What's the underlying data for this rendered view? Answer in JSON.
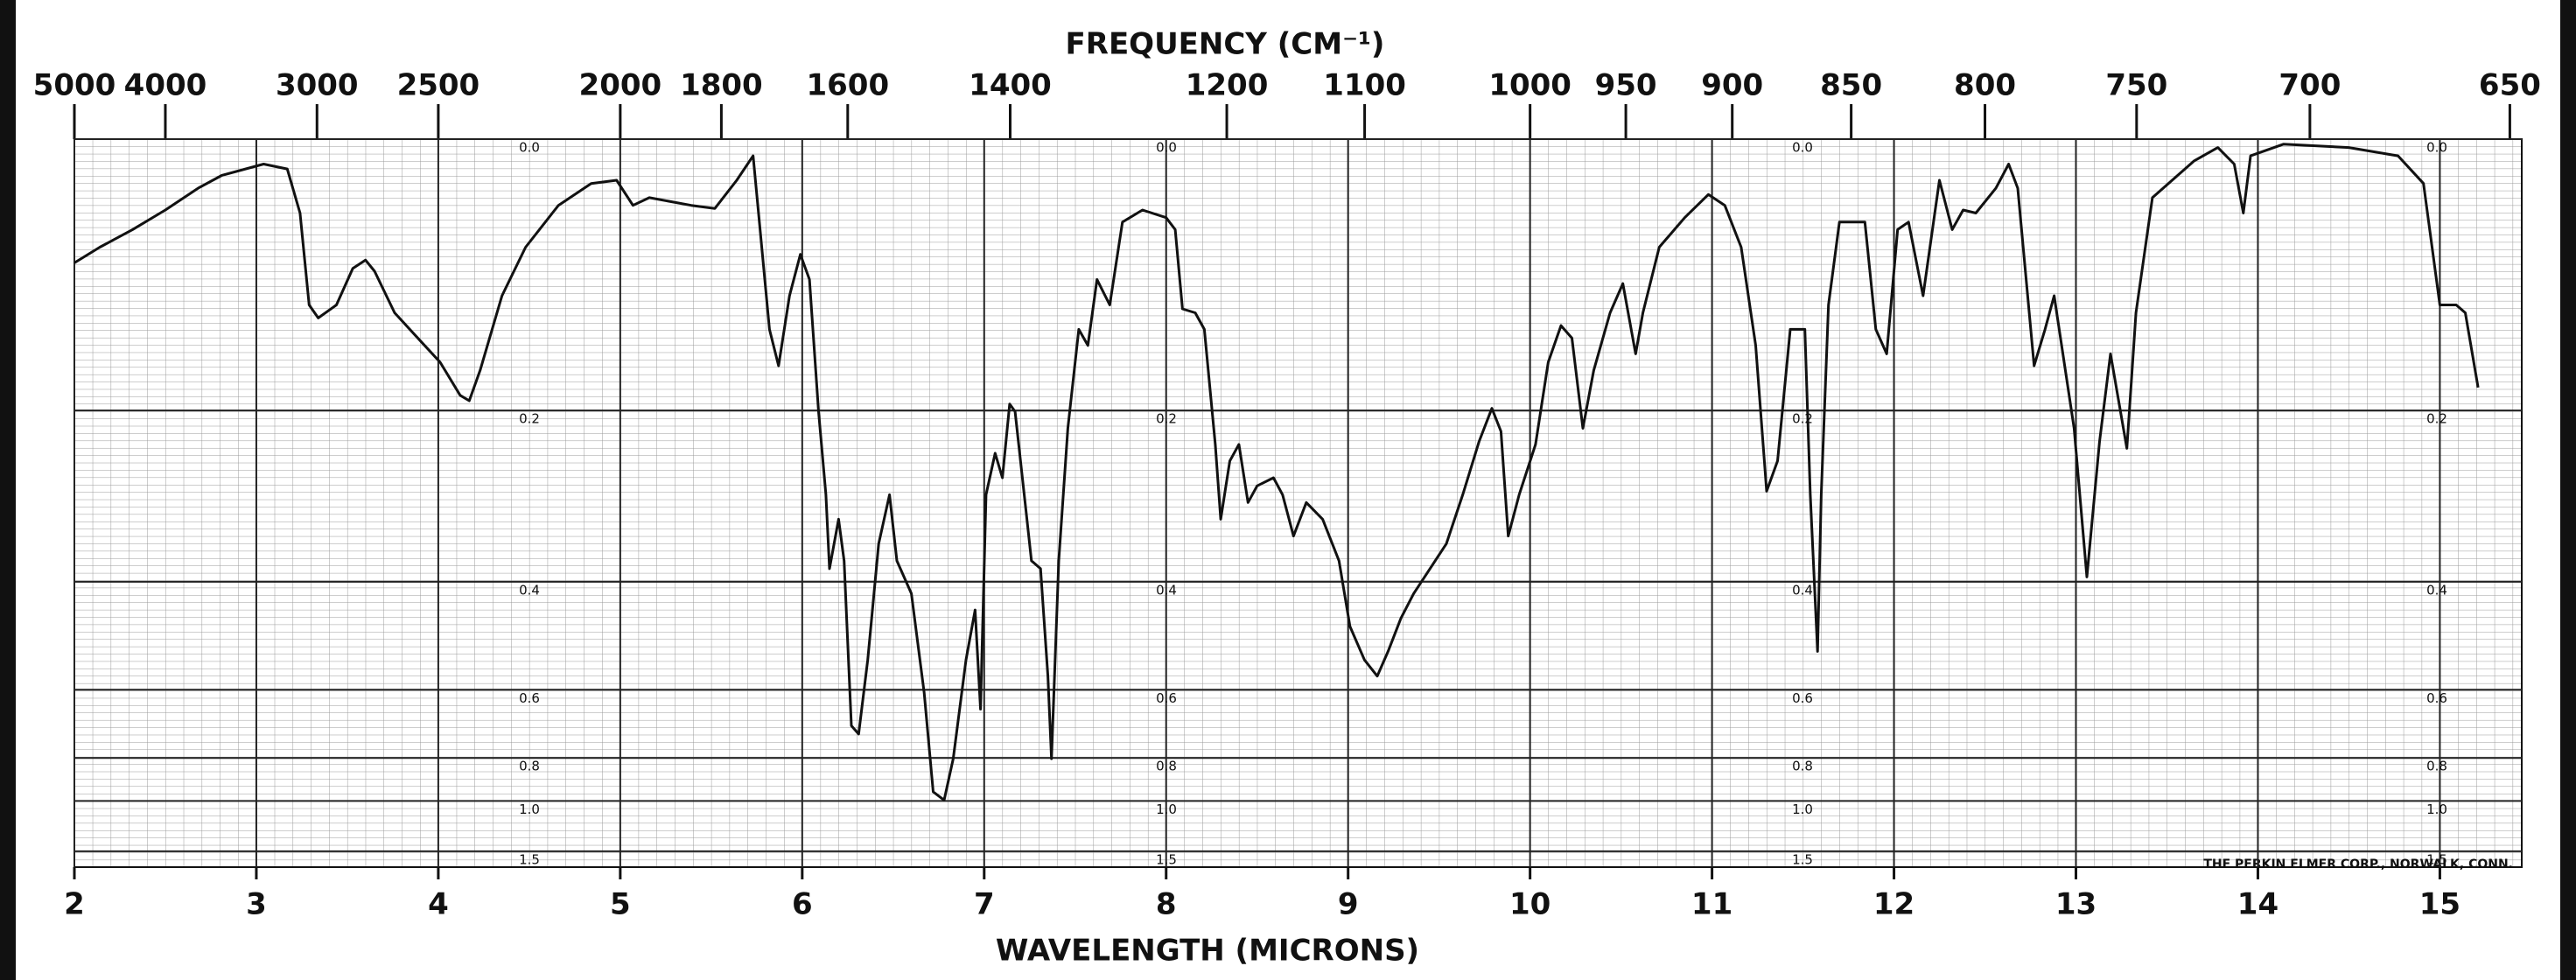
{
  "chart_data": {
    "type": "line",
    "x2_label": "FREQUENCY (CM⁻¹)",
    "x_label": "WAVELENGTH (MICRONS)",
    "note": "THE PERKIN ELMER CORP., NORWALK, CONN.",
    "color": "#111111",
    "yscale": "absorbance",
    "grid": true,
    "xlim": [
      2,
      15.45
    ],
    "ylim": [
      0,
      2
    ],
    "xticks": [
      2,
      3,
      4,
      5,
      6,
      7,
      8,
      9,
      10,
      11,
      12,
      13,
      14,
      15
    ],
    "x2ticks": [
      5000,
      4000,
      3000,
      2500,
      2000,
      1800,
      1600,
      1400,
      1200,
      1100,
      1000,
      950,
      900,
      850,
      800,
      750,
      700,
      650
    ],
    "yticks": [
      {
        "value": 0,
        "label": "0.0"
      },
      0.2,
      0.4,
      0.6,
      0.8,
      {
        "value": 1,
        "label": "1.0"
      },
      1.5
    ],
    "x": [
      2.0,
      2.14,
      2.32,
      2.5,
      2.68,
      2.81,
      3.04,
      3.17,
      3.24,
      3.29,
      3.34,
      3.44,
      3.53,
      3.6,
      3.65,
      3.76,
      3.9,
      4.01,
      4.12,
      4.17,
      4.23,
      4.35,
      4.48,
      4.66,
      4.84,
      4.98,
      5.07,
      5.16,
      5.39,
      5.52,
      5.64,
      5.73,
      5.76,
      5.82,
      5.87,
      5.93,
      5.99,
      6.04,
      6.09,
      6.13,
      6.15,
      6.2,
      6.23,
      6.27,
      6.31,
      6.36,
      6.42,
      6.48,
      6.52,
      6.6,
      6.67,
      6.72,
      6.78,
      6.83,
      6.9,
      6.95,
      6.98,
      7.01,
      7.06,
      7.1,
      7.14,
      7.17,
      7.23,
      7.26,
      7.31,
      7.35,
      7.37,
      7.41,
      7.46,
      7.52,
      7.57,
      7.62,
      7.69,
      7.76,
      7.87,
      8.0,
      8.05,
      8.09,
      8.16,
      8.21,
      8.27,
      8.3,
      8.35,
      8.4,
      8.45,
      8.5,
      8.59,
      8.64,
      8.7,
      8.77,
      8.86,
      8.95,
      9.01,
      9.09,
      9.16,
      9.22,
      9.29,
      9.36,
      9.45,
      9.54,
      9.63,
      9.72,
      9.79,
      9.84,
      9.88,
      9.94,
      10.03,
      10.1,
      10.17,
      10.23,
      10.29,
      10.35,
      10.44,
      10.51,
      10.58,
      10.62,
      10.71,
      10.85,
      10.98,
      11.07,
      11.16,
      11.24,
      11.3,
      11.36,
      11.43,
      11.51,
      11.54,
      11.58,
      11.6,
      11.64,
      11.7,
      11.84,
      11.9,
      11.96,
      12.02,
      12.08,
      12.16,
      12.25,
      12.32,
      12.38,
      12.45,
      12.56,
      12.63,
      12.68,
      12.77,
      12.83,
      12.88,
      12.99,
      13.06,
      13.13,
      13.19,
      13.28,
      13.33,
      13.42,
      13.65,
      13.78,
      13.87,
      13.92,
      13.96,
      14.14,
      14.5,
      14.77,
      14.91,
      15.0,
      15.09,
      15.14,
      15.21
    ],
    "values": [
      0.08,
      0.069,
      0.057,
      0.044,
      0.03,
      0.022,
      0.015,
      0.018,
      0.046,
      0.111,
      0.121,
      0.111,
      0.084,
      0.078,
      0.086,
      0.117,
      0.139,
      0.157,
      0.186,
      0.191,
      0.164,
      0.104,
      0.069,
      0.041,
      0.027,
      0.025,
      0.041,
      0.036,
      0.041,
      0.043,
      0.025,
      0.01,
      0.046,
      0.13,
      0.16,
      0.104,
      0.074,
      0.092,
      0.201,
      0.287,
      0.381,
      0.316,
      0.37,
      0.694,
      0.719,
      0.535,
      0.347,
      0.287,
      0.37,
      0.418,
      0.607,
      0.949,
      0.995,
      0.803,
      0.535,
      0.444,
      0.648,
      0.287,
      0.242,
      0.268,
      0.194,
      0.201,
      0.306,
      0.37,
      0.381,
      0.569,
      0.803,
      0.37,
      0.217,
      0.13,
      0.143,
      0.092,
      0.111,
      0.052,
      0.044,
      0.049,
      0.057,
      0.114,
      0.117,
      0.13,
      0.233,
      0.316,
      0.25,
      0.233,
      0.296,
      0.277,
      0.268,
      0.287,
      0.337,
      0.296,
      0.316,
      0.37,
      0.472,
      0.535,
      0.569,
      0.518,
      0.458,
      0.418,
      0.381,
      0.347,
      0.287,
      0.23,
      0.198,
      0.22,
      0.337,
      0.287,
      0.233,
      0.157,
      0.127,
      0.137,
      0.217,
      0.164,
      0.117,
      0.095,
      0.15,
      0.117,
      0.069,
      0.049,
      0.034,
      0.041,
      0.069,
      0.143,
      0.283,
      0.25,
      0.13,
      0.13,
      0.287,
      0.518,
      0.287,
      0.111,
      0.052,
      0.052,
      0.13,
      0.15,
      0.057,
      0.052,
      0.104,
      0.025,
      0.057,
      0.044,
      0.046,
      0.03,
      0.015,
      0.03,
      0.16,
      0.13,
      0.104,
      0.217,
      0.393,
      0.23,
      0.15,
      0.237,
      0.117,
      0.036,
      0.013,
      0.005,
      0.015,
      0.046,
      0.01,
      0.003,
      0.005,
      0.01,
      0.027,
      0.111,
      0.111,
      0.117,
      0.179
    ]
  }
}
